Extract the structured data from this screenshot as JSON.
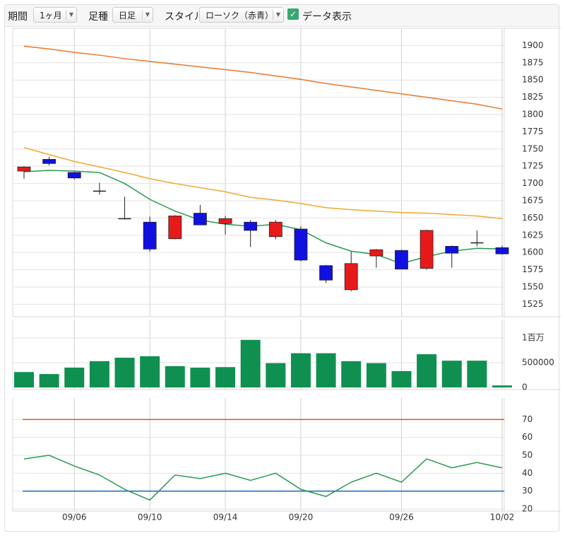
{
  "toolbar": {
    "period_label": "期間",
    "period": "1ヶ月",
    "bar_label": "足種",
    "bar": "日足",
    "style_label": "スタイル",
    "style": "ローソク（赤青）",
    "data_toggle": "データ表示"
  },
  "chart_data": [
    {
      "type": "candlestick",
      "open": [
        1718,
        1735,
        1716,
        1689,
        1649,
        1644,
        1620,
        1657,
        1642,
        1644,
        1623,
        1634,
        1581,
        1546,
        1595,
        1603,
        1577,
        1609,
        1614,
        1607
      ],
      "high": [
        1725,
        1739,
        1717,
        1701,
        1681,
        1652,
        1654,
        1669,
        1653,
        1647,
        1647,
        1638,
        1582,
        1601,
        1605,
        1604,
        1633,
        1610,
        1632,
        1610
      ],
      "low": [
        1707,
        1726,
        1706,
        1684,
        1648,
        1601,
        1619,
        1640,
        1626,
        1608,
        1619,
        1587,
        1556,
        1544,
        1578,
        1576,
        1575,
        1578,
        1609,
        1597
      ],
      "close": [
        1724,
        1729,
        1708,
        1689,
        1649,
        1605,
        1653,
        1640,
        1649,
        1632,
        1644,
        1589,
        1560,
        1584,
        1604,
        1576,
        1632,
        1599,
        1614,
        1598
      ],
      "up_color": "#e8191a",
      "down_color": "#1010e0",
      "series": [
        {
          "color": "#e8782c",
          "values": [
            1899,
            1895,
            1890,
            1886,
            1881,
            1877,
            1873,
            1869,
            1865,
            1861,
            1856,
            1851,
            1845,
            1840,
            1835,
            1830,
            1825,
            1820,
            1815,
            1808
          ]
        },
        {
          "color": "#f0a830",
          "values": [
            1752,
            1742,
            1732,
            1724,
            1716,
            1707,
            1700,
            1694,
            1688,
            1680,
            1676,
            1671,
            1665,
            1662,
            1660,
            1658,
            1657,
            1655,
            1653,
            1649
          ]
        },
        {
          "color": "#2a9a50",
          "values": [
            1717,
            1719,
            1718,
            1716,
            1700,
            1677,
            1660,
            1647,
            1641,
            1638,
            1641,
            1633,
            1614,
            1602,
            1597,
            1584,
            1594,
            1602,
            1606,
            1605
          ]
        }
      ],
      "ylim": [
        1510,
        1925
      ],
      "yticks": [
        1525,
        1550,
        1575,
        1600,
        1625,
        1650,
        1675,
        1700,
        1725,
        1750,
        1775,
        1800,
        1825,
        1850,
        1875,
        1900
      ],
      "grid": true
    },
    {
      "type": "bar",
      "color": "#109050",
      "values": [
        310000,
        270000,
        400000,
        530000,
        600000,
        630000,
        430000,
        400000,
        410000,
        960000,
        490000,
        690000,
        690000,
        530000,
        490000,
        330000,
        670000,
        540000,
        540000,
        40000
      ],
      "ylim": [
        0,
        1370000
      ],
      "yticks": [
        0,
        500000,
        {
          "value": 1000000,
          "label": "1百万"
        }
      ],
      "grid": true
    },
    {
      "type": "line",
      "categories": [
        null,
        null,
        "09/06",
        null,
        null,
        "09/10",
        null,
        null,
        "09/14",
        null,
        null,
        "09/20",
        null,
        null,
        null,
        "09/26",
        null,
        null,
        null,
        "10/02"
      ],
      "series": [
        {
          "color": "#2a9a50",
          "values": [
            48,
            50,
            44,
            39,
            31,
            25,
            39,
            37,
            40,
            36,
            40,
            31,
            27,
            35,
            40,
            35,
            48,
            43,
            46,
            43
          ]
        }
      ],
      "reference_lines": [
        {
          "value": 70,
          "color": "#e0522e"
        },
        {
          "value": 30,
          "color": "#2a6fc0"
        }
      ],
      "ylim": [
        20,
        82
      ],
      "yticks": [
        20,
        30,
        40,
        50,
        60,
        70
      ],
      "grid": true
    }
  ]
}
